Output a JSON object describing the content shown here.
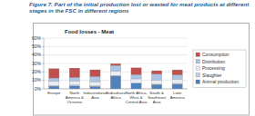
{
  "chart_data": {
    "type": "bar",
    "stacked": true,
    "title": "Figure 7.  Part of the initial production lost or wasted for meat products at different stages in the FSC in different regions",
    "subtitle": "Food losses - Meat",
    "categories": [
      "Europe",
      "North America & Oceania",
      "Industrialized Asia",
      "Subsahara Africa",
      "North Africa, West & Central Asia",
      "South & Southeast Asia",
      "Latin America"
    ],
    "series": [
      {
        "name": "Animal production",
        "color": "#4f81bd",
        "values": [
          3.1,
          3.5,
          2.9,
          15,
          6.6,
          5.1,
          5.3
        ]
      },
      {
        "name": "Slaughter",
        "color": "#c3d0e0",
        "values": [
          0.7,
          1.0,
          0.6,
          0.7,
          0.2,
          0.3,
          1.1
        ]
      },
      {
        "name": "Processing",
        "color": "#e8edf4",
        "values": [
          5,
          5,
          5,
          5,
          5,
          5,
          5
        ]
      },
      {
        "name": "Distribution",
        "color": "#a9c4e4",
        "values": [
          4,
          4,
          6,
          7,
          5,
          7,
          5
        ]
      },
      {
        "name": "Consumption",
        "color": "#c0504d",
        "values": [
          11,
          11,
          8,
          2,
          8,
          4,
          6
        ]
      }
    ],
    "ylim": [
      0,
      60
    ],
    "yticks": [
      {
        "value": 0,
        "label": "0%"
      },
      {
        "value": 10,
        "label": "10%"
      },
      {
        "value": 20,
        "label": "20%"
      },
      {
        "value": 30,
        "label": "30%"
      },
      {
        "value": 40,
        "label": "40%"
      },
      {
        "value": 50,
        "label": "50%"
      },
      {
        "value": 60,
        "label": "60%"
      }
    ],
    "grid": true,
    "legend": "right"
  }
}
